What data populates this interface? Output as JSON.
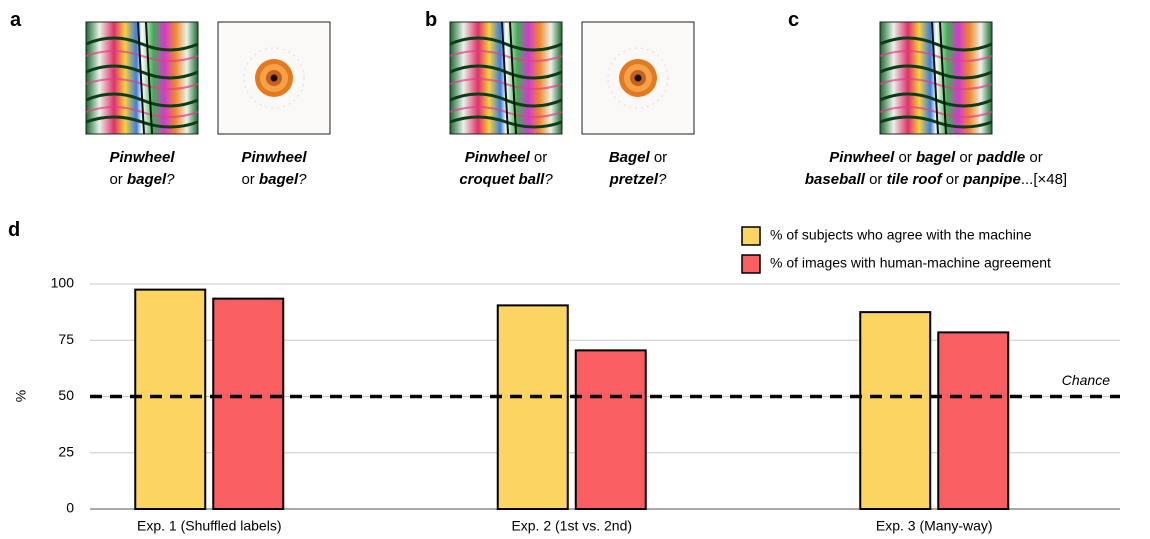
{
  "panels": [
    {
      "letter": "a",
      "items": [
        {
          "caption": [
            [
              {
                "text": "Pinwheel",
                "style": "bold-italic"
              }
            ],
            [
              {
                "text": "or ",
                "style": "normal"
              },
              {
                "text": "bagel",
                "style": "bold-italic"
              },
              {
                "text": "?",
                "style": "italic"
              }
            ]
          ]
        },
        {
          "caption": [
            [
              {
                "text": "Pinwheel",
                "style": "bold-italic"
              }
            ],
            [
              {
                "text": "or ",
                "style": "normal"
              },
              {
                "text": "bagel",
                "style": "bold-italic"
              },
              {
                "text": "?",
                "style": "italic"
              }
            ]
          ]
        }
      ]
    },
    {
      "letter": "b",
      "items": [
        {
          "caption": [
            [
              {
                "text": "Pinwheel",
                "style": "bold-italic"
              },
              {
                "text": " or",
                "style": "normal"
              }
            ],
            [
              {
                "text": "croquet ball",
                "style": "bold-italic"
              },
              {
                "text": "?",
                "style": "italic"
              }
            ]
          ]
        },
        {
          "caption": [
            [
              {
                "text": "Bagel",
                "style": "bold-italic"
              },
              {
                "text": " or",
                "style": "normal"
              }
            ],
            [
              {
                "text": "pretzel",
                "style": "bold-italic"
              },
              {
                "text": "?",
                "style": "italic"
              }
            ]
          ]
        }
      ]
    },
    {
      "letter": "c",
      "items": [
        {
          "caption": [
            [
              {
                "text": "Pinwheel",
                "style": "bold-italic"
              },
              {
                "text": " or ",
                "style": "normal"
              },
              {
                "text": "bagel",
                "style": "bold-italic"
              },
              {
                "text": " or ",
                "style": "normal"
              },
              {
                "text": "paddle",
                "style": "bold-italic"
              },
              {
                "text": " or",
                "style": "normal"
              }
            ],
            [
              {
                "text": "baseball",
                "style": "bold-italic"
              },
              {
                "text": " or ",
                "style": "normal"
              },
              {
                "text": "tile roof",
                "style": "bold-italic"
              },
              {
                "text": " or ",
                "style": "normal"
              },
              {
                "text": "panpipe",
                "style": "bold-italic"
              },
              {
                "text": "...[×48]",
                "style": "normal"
              }
            ]
          ]
        }
      ]
    }
  ],
  "chart_data": {
    "type": "bar",
    "panel_letter": "d",
    "ylabel": "%",
    "categories": [
      "Exp. 1 (Shuffled labels)",
      "Exp. 2 (1st vs. 2nd)",
      "Exp. 3 (Many-way)"
    ],
    "series": [
      {
        "name": "% of subjects who agree with the machine",
        "color": "#fcd462",
        "values": [
          97.5,
          90.5,
          87.5
        ]
      },
      {
        "name": "% of images with human-machine agreement",
        "color": "#f95f62",
        "values": [
          93.5,
          70.5,
          78.5
        ]
      }
    ],
    "ylim": [
      0,
      100
    ],
    "yticks": [
      0,
      25,
      50,
      75,
      100
    ],
    "grid": true,
    "chance": {
      "value": 50,
      "label": "Chance"
    }
  }
}
